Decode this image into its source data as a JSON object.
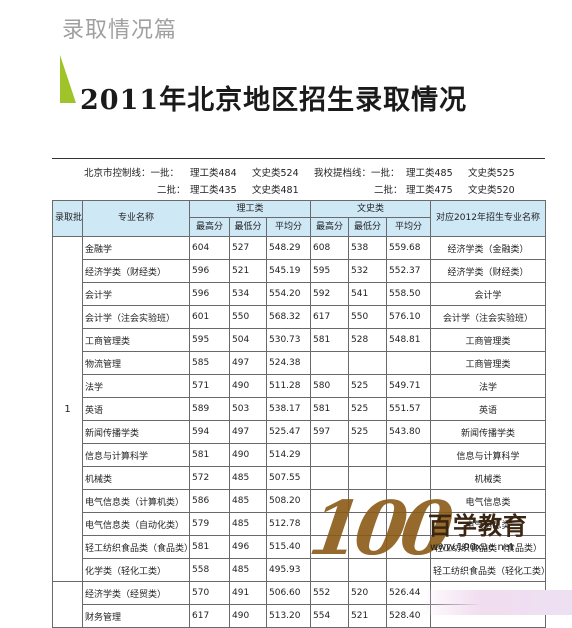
{
  "header": {
    "section_title": "录取情况篇",
    "main_title": "2011年北京地区招生录取情况"
  },
  "control_lines": {
    "row1": {
      "city_label": "北京市控制线：一批：",
      "sci": "理工类484",
      "art": "文史类524",
      "school_label": "我校提档线：一批：",
      "school_sci": "理工类485",
      "school_art": "文史类525"
    },
    "row2": {
      "city_label": "二批：",
      "sci": "理工类435",
      "art": "文史类481",
      "school_label": "二批：",
      "school_sci": "理工类475",
      "school_art": "文史类520"
    }
  },
  "table": {
    "headers": {
      "batch": "录取批次",
      "major": "专业名称",
      "sci_group": "理工类",
      "art_group": "文史类",
      "max": "最高分",
      "min": "最低分",
      "avg": "平均分",
      "target": "对应2012年招生专业名称"
    },
    "batch_label": "1",
    "rows": [
      {
        "name": "金融学",
        "s_max": "604",
        "s_min": "527",
        "s_avg": "548.29",
        "a_max": "608",
        "a_min": "538",
        "a_avg": "559.68",
        "target": "经济学类（金融类）"
      },
      {
        "name": "经济学类（财经类）",
        "s_max": "596",
        "s_min": "521",
        "s_avg": "545.19",
        "a_max": "595",
        "a_min": "532",
        "a_avg": "552.37",
        "target": "经济学类（财经类）"
      },
      {
        "name": "会计学",
        "s_max": "596",
        "s_min": "534",
        "s_avg": "554.20",
        "a_max": "592",
        "a_min": "541",
        "a_avg": "558.50",
        "target": "会计学"
      },
      {
        "name": "会计学（注会实验班）",
        "s_max": "601",
        "s_min": "550",
        "s_avg": "568.32",
        "a_max": "617",
        "a_min": "550",
        "a_avg": "576.10",
        "target": "会计学（注会实验班）"
      },
      {
        "name": "工商管理类",
        "s_max": "595",
        "s_min": "504",
        "s_avg": "530.73",
        "a_max": "581",
        "a_min": "528",
        "a_avg": "548.81",
        "target": "工商管理类"
      },
      {
        "name": "物流管理",
        "s_max": "585",
        "s_min": "497",
        "s_avg": "524.38",
        "a_max": "",
        "a_min": "",
        "a_avg": "",
        "target": "工商管理类"
      },
      {
        "name": "法学",
        "s_max": "571",
        "s_min": "490",
        "s_avg": "511.28",
        "a_max": "580",
        "a_min": "525",
        "a_avg": "549.71",
        "target": "法学"
      },
      {
        "name": "英语",
        "s_max": "589",
        "s_min": "503",
        "s_avg": "538.17",
        "a_max": "581",
        "a_min": "525",
        "a_avg": "551.57",
        "target": "英语"
      },
      {
        "name": "新闻传播学类",
        "s_max": "594",
        "s_min": "497",
        "s_avg": "525.47",
        "a_max": "597",
        "a_min": "525",
        "a_avg": "543.80",
        "target": "新闻传播学类"
      },
      {
        "name": "信息与计算科学",
        "s_max": "581",
        "s_min": "490",
        "s_avg": "514.29",
        "a_max": "",
        "a_min": "",
        "a_avg": "",
        "target": "信息与计算科学"
      },
      {
        "name": "机械类",
        "s_max": "572",
        "s_min": "485",
        "s_avg": "507.55",
        "a_max": "",
        "a_min": "",
        "a_avg": "",
        "target": "机械类"
      },
      {
        "name": "电气信息类（计算机类）",
        "s_max": "586",
        "s_min": "485",
        "s_avg": "508.20",
        "a_max": "",
        "a_min": "",
        "a_avg": "",
        "target": "电气信息类"
      },
      {
        "name": "电气信息类（自动化类）",
        "s_max": "579",
        "s_min": "485",
        "s_avg": "512.78",
        "a_max": "",
        "a_min": "",
        "a_avg": "",
        "target": "电气信息类"
      },
      {
        "name": "轻工纺织食品类（食品类）",
        "s_max": "581",
        "s_min": "496",
        "s_avg": "515.40",
        "a_max": "",
        "a_min": "",
        "a_avg": "",
        "target": "轻工纺织食品类（食品类）"
      },
      {
        "name": "化学类（轻化工类）",
        "s_max": "558",
        "s_min": "485",
        "s_avg": "495.93",
        "a_max": "",
        "a_min": "",
        "a_avg": "",
        "target": "轻工纺织食品类（轻化工类）"
      }
    ],
    "next_rows": [
      {
        "name": "经济学类（经贸类）",
        "s_max": "570",
        "s_min": "491",
        "s_avg": "506.60",
        "a_max": "552",
        "a_min": "520",
        "a_avg": "526.44",
        "target": ""
      },
      {
        "name": "财务管理",
        "s_max": "617",
        "s_min": "490",
        "s_avg": "513.20",
        "a_max": "554",
        "a_min": "521",
        "a_avg": "528.40",
        "target": ""
      }
    ]
  },
  "watermark": {
    "logo_number": "100",
    "logo_text": "百学教育",
    "url": "www.100xue.net"
  }
}
